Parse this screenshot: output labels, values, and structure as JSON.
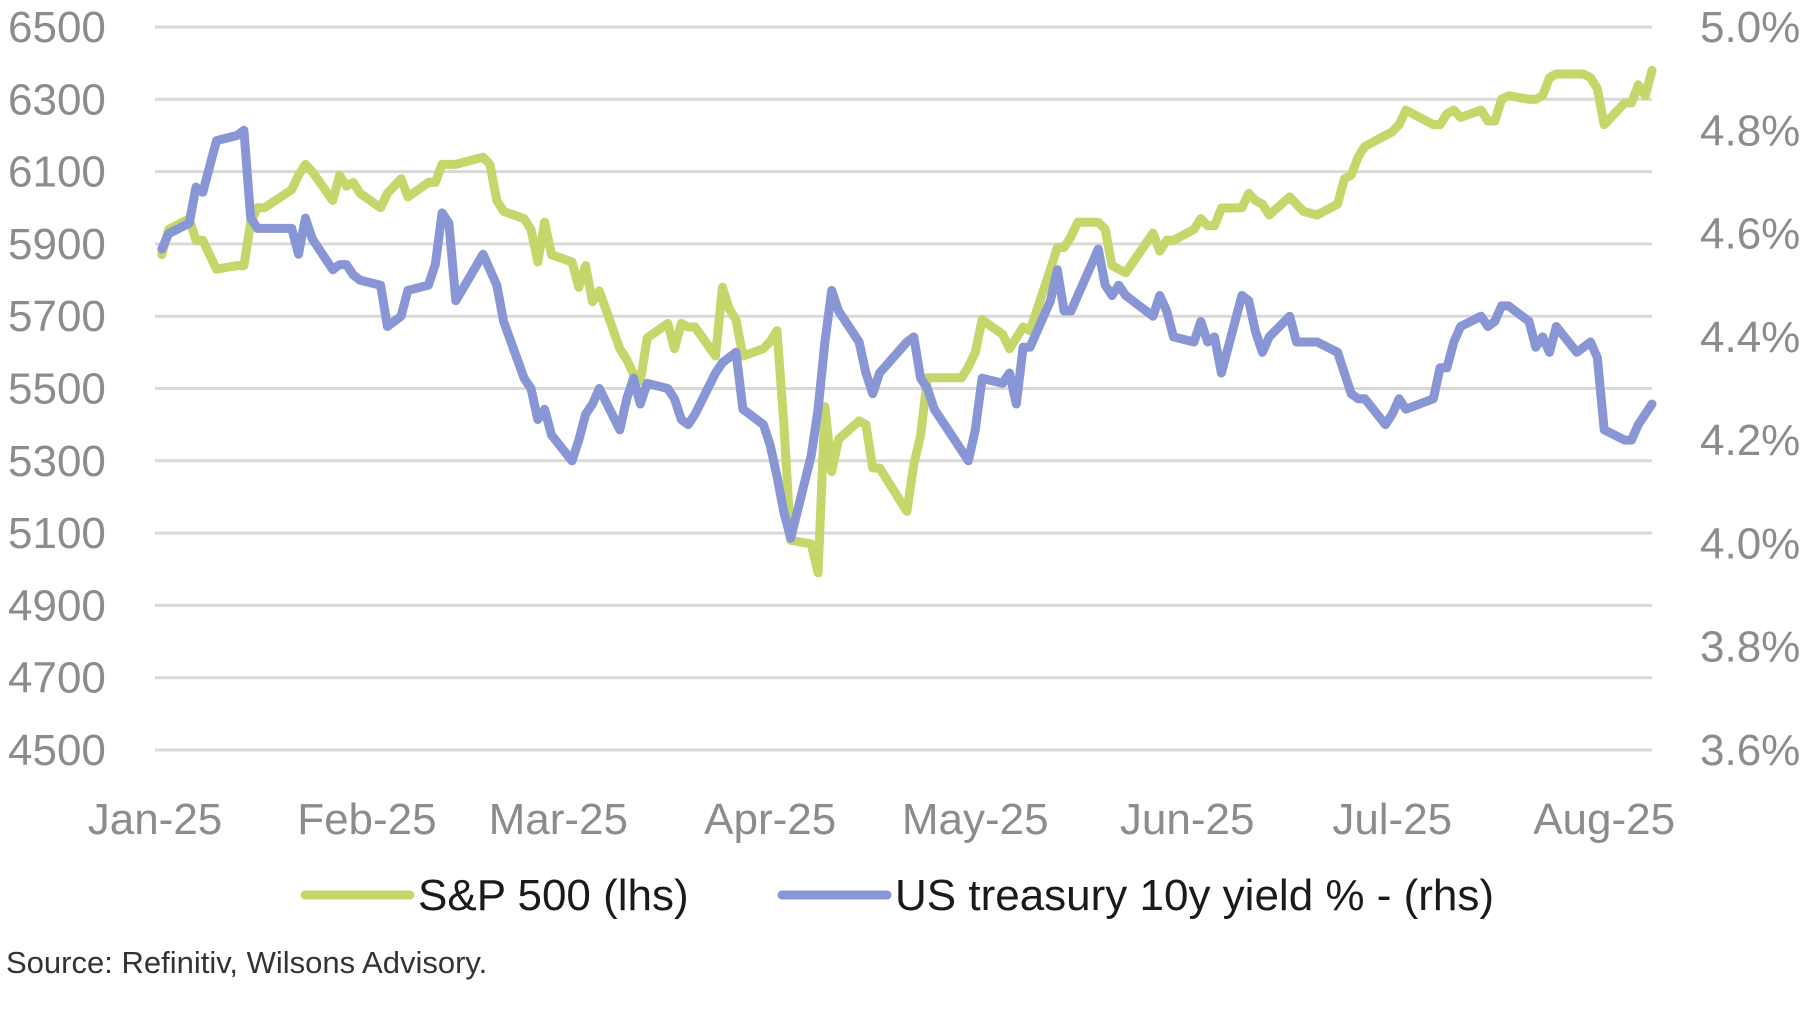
{
  "chart_data": {
    "type": "line",
    "x_dates": [
      "2025-01-02",
      "2025-01-03",
      "2025-01-06",
      "2025-01-07",
      "2025-01-08",
      "2025-01-10",
      "2025-01-13",
      "2025-01-14",
      "2025-01-15",
      "2025-01-16",
      "2025-01-17",
      "2025-01-21",
      "2025-01-22",
      "2025-01-23",
      "2025-01-24",
      "2025-01-27",
      "2025-01-28",
      "2025-01-29",
      "2025-01-30",
      "2025-01-31",
      "2025-02-03",
      "2025-02-04",
      "2025-02-05",
      "2025-02-06",
      "2025-02-07",
      "2025-02-10",
      "2025-02-11",
      "2025-02-12",
      "2025-02-13",
      "2025-02-14",
      "2025-02-18",
      "2025-02-19",
      "2025-02-20",
      "2025-02-21",
      "2025-02-24",
      "2025-02-25",
      "2025-02-26",
      "2025-02-27",
      "2025-02-28",
      "2025-03-03",
      "2025-03-04",
      "2025-03-05",
      "2025-03-06",
      "2025-03-07",
      "2025-03-10",
      "2025-03-11",
      "2025-03-12",
      "2025-03-13",
      "2025-03-14",
      "2025-03-17",
      "2025-03-18",
      "2025-03-19",
      "2025-03-20",
      "2025-03-21",
      "2025-03-24",
      "2025-03-25",
      "2025-03-26",
      "2025-03-27",
      "2025-03-28",
      "2025-03-31",
      "2025-04-01",
      "2025-04-02",
      "2025-04-03",
      "2025-04-04",
      "2025-04-07",
      "2025-04-08",
      "2025-04-09",
      "2025-04-10",
      "2025-04-11",
      "2025-04-14",
      "2025-04-15",
      "2025-04-16",
      "2025-04-17",
      "2025-04-21",
      "2025-04-22",
      "2025-04-23",
      "2025-04-24",
      "2025-04-25",
      "2025-04-28",
      "2025-04-29",
      "2025-04-30",
      "2025-05-01",
      "2025-05-02",
      "2025-05-05",
      "2025-05-06",
      "2025-05-07",
      "2025-05-08",
      "2025-05-09",
      "2025-05-12",
      "2025-05-13",
      "2025-05-14",
      "2025-05-15",
      "2025-05-16",
      "2025-05-19",
      "2025-05-20",
      "2025-05-21",
      "2025-05-22",
      "2025-05-23",
      "2025-05-27",
      "2025-05-28",
      "2025-05-29",
      "2025-05-30",
      "2025-06-02",
      "2025-06-03",
      "2025-06-04",
      "2025-06-05",
      "2025-06-06",
      "2025-06-09",
      "2025-06-10",
      "2025-06-11",
      "2025-06-12",
      "2025-06-13",
      "2025-06-16",
      "2025-06-17",
      "2025-06-18",
      "2025-06-20",
      "2025-06-23",
      "2025-06-24",
      "2025-06-25",
      "2025-06-26",
      "2025-06-27",
      "2025-06-30",
      "2025-07-01",
      "2025-07-02",
      "2025-07-03",
      "2025-07-07",
      "2025-07-08",
      "2025-07-09",
      "2025-07-10",
      "2025-07-11",
      "2025-07-14",
      "2025-07-15",
      "2025-07-16",
      "2025-07-17",
      "2025-07-18",
      "2025-07-21",
      "2025-07-22",
      "2025-07-23",
      "2025-07-24",
      "2025-07-25",
      "2025-07-28",
      "2025-07-29",
      "2025-07-30",
      "2025-07-31",
      "2025-08-01",
      "2025-08-04",
      "2025-08-05",
      "2025-08-06",
      "2025-08-07",
      "2025-08-08"
    ],
    "series": [
      {
        "name": "S&P 500 (lhs)",
        "axis": "left",
        "color": "#c5d66b",
        "values": [
          5870,
          5940,
          5970,
          5910,
          5910,
          5830,
          5840,
          5840,
          5960,
          6000,
          6000,
          6050,
          6090,
          6120,
          6100,
          6020,
          6090,
          6060,
          6070,
          6040,
          6000,
          6040,
          6060,
          6080,
          6030,
          6070,
          6070,
          6120,
          6120,
          6120,
          6140,
          6120,
          6020,
          5990,
          5970,
          5940,
          5850,
          5960,
          5870,
          5850,
          5780,
          5840,
          5740,
          5770,
          5610,
          5580,
          5540,
          5520,
          5640,
          5680,
          5610,
          5680,
          5670,
          5670,
          5590,
          5780,
          5720,
          5690,
          5590,
          5610,
          5630,
          5660,
          5400,
          5080,
          5070,
          4990,
          5450,
          5270,
          5360,
          5410,
          5400,
          5280,
          5280,
          5160,
          5290,
          5370,
          5530,
          5530,
          5530,
          5530,
          5560,
          5600,
          5690,
          5650,
          5610,
          5640,
          5670,
          5660,
          5830,
          5890,
          5890,
          5920,
          5960,
          5960,
          5940,
          5840,
          5830,
          5820,
          5930,
          5880,
          5910,
          5910,
          5940,
          5970,
          5950,
          5950,
          5999,
          6000,
          6040,
          6020,
          6010,
          5980,
          6030,
          6010,
          5990,
          5980,
          6010,
          6080,
          6090,
          6140,
          6170,
          6200,
          6210,
          6230,
          6270,
          6230,
          6230,
          6260,
          6270,
          6250,
          6270,
          6240,
          6240,
          6300,
          6310,
          6300,
          6300,
          6310,
          6360,
          6370,
          6370,
          6370,
          6360,
          6330,
          6230,
          6290,
          6290,
          6340,
          6310,
          6380
        ]
      },
      {
        "name": "US treasury 10y yield % - (rhs)",
        "axis": "right",
        "color": "#8996d6",
        "values": [
          4.57,
          4.6,
          4.62,
          4.69,
          4.68,
          4.78,
          4.79,
          4.8,
          4.63,
          4.61,
          4.61,
          4.61,
          4.56,
          4.63,
          4.59,
          4.53,
          4.54,
          4.54,
          4.52,
          4.51,
          4.5,
          4.42,
          4.43,
          4.44,
          4.49,
          4.5,
          4.54,
          4.64,
          4.62,
          4.47,
          4.56,
          4.53,
          4.5,
          4.43,
          4.32,
          4.3,
          4.24,
          4.26,
          4.21,
          4.16,
          4.2,
          4.25,
          4.27,
          4.3,
          4.22,
          4.28,
          4.32,
          4.27,
          4.31,
          4.3,
          4.28,
          4.24,
          4.23,
          4.25,
          4.33,
          4.35,
          4.36,
          4.37,
          4.26,
          4.23,
          4.19,
          4.13,
          4.06,
          4.01,
          4.17,
          4.26,
          4.39,
          4.49,
          4.45,
          4.39,
          4.33,
          4.29,
          4.33,
          4.39,
          4.4,
          4.32,
          4.3,
          4.26,
          4.2,
          4.18,
          4.16,
          4.22,
          4.32,
          4.31,
          4.33,
          4.27,
          4.38,
          4.38,
          4.47,
          4.53,
          4.45,
          4.45,
          4.48,
          4.57,
          4.5,
          4.48,
          4.5,
          4.48,
          4.44,
          4.48,
          4.45,
          4.4,
          4.39,
          4.43,
          4.39,
          4.4,
          4.33,
          4.48,
          4.47,
          4.41,
          4.37,
          4.4,
          4.44,
          4.39,
          4.39,
          4.39,
          4.37,
          4.33,
          4.29,
          4.28,
          4.28,
          4.23,
          4.25,
          4.28,
          4.26,
          4.28,
          4.34,
          4.34,
          4.39,
          4.42,
          4.44,
          4.42,
          4.43,
          4.46,
          4.46,
          4.43,
          4.38,
          4.4,
          4.37,
          4.42,
          4.37,
          4.38,
          4.39,
          4.36,
          4.22,
          4.2,
          4.2,
          4.23,
          4.25,
          4.27
        ]
      }
    ],
    "x_tick_labels": [
      "Jan-25",
      "Feb-25",
      "Mar-25",
      "Apr-25",
      "May-25",
      "Jun-25",
      "Jul-25",
      "Aug-25"
    ],
    "x_tick_dates": [
      "2025-01-01",
      "2025-02-01",
      "2025-03-01",
      "2025-04-01",
      "2025-05-01",
      "2025-06-01",
      "2025-07-01",
      "2025-08-01"
    ],
    "xlim": [
      "2025-01-01",
      "2025-08-08"
    ],
    "y_left": {
      "ylim": [
        4500,
        6500
      ],
      "ticks": [
        4500,
        4700,
        4900,
        5100,
        5300,
        5500,
        5700,
        5900,
        6100,
        6300,
        6500
      ],
      "tick_labels": [
        "4500",
        "4700",
        "4900",
        "5100",
        "5300",
        "5500",
        "5700",
        "5900",
        "6100",
        "6300",
        "6500"
      ]
    },
    "y_right": {
      "ylim": [
        3.6,
        5.0
      ],
      "ticks": [
        3.6,
        3.8,
        4.0,
        4.2,
        4.4,
        4.6,
        4.8,
        5.0
      ],
      "tick_labels": [
        "3.6%",
        "3.8%",
        "4.0%",
        "4.2%",
        "4.4%",
        "4.6%",
        "4.8%",
        "5.0%"
      ]
    },
    "grid": true,
    "legend_position": "bottom",
    "legend": [
      "S&P 500 (lhs)",
      "US treasury 10y yield % - (rhs)"
    ]
  },
  "source_note": "Source: Refinitiv, Wilsons Advisory."
}
